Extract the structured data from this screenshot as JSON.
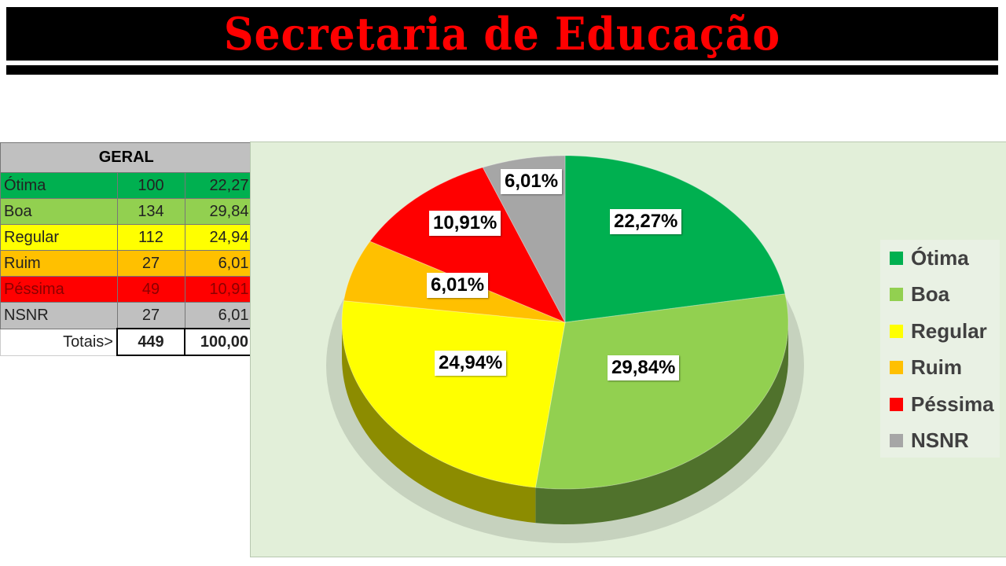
{
  "header": {
    "title": "Secretaria de Educação"
  },
  "table": {
    "title": "GERAL",
    "rows": [
      {
        "label": "Ótima",
        "count": "100",
        "percent": "22,27",
        "color": "#00b050",
        "text_color": "#222222"
      },
      {
        "label": "Boa",
        "count": "134",
        "percent": "29,84",
        "color": "#92d050",
        "text_color": "#222222"
      },
      {
        "label": "Regular",
        "count": "112",
        "percent": "24,94",
        "color": "#ffff00",
        "text_color": "#222222"
      },
      {
        "label": "Ruim",
        "count": "27",
        "percent": "6,01",
        "color": "#ffc000",
        "text_color": "#222222"
      },
      {
        "label": "Péssima",
        "count": "49",
        "percent": "10,91",
        "color": "#ff0000",
        "text_color": "#8b0000"
      },
      {
        "label": "NSNR",
        "count": "27",
        "percent": "6,01",
        "color": "#c0c0c0",
        "text_color": "#222222"
      }
    ],
    "totals": {
      "label": "Totais>",
      "count": "449",
      "percent": "100,00"
    }
  },
  "chart_data": {
    "type": "pie",
    "style": "3d",
    "start": "top, clockwise",
    "categories": [
      "Ótima",
      "Boa",
      "Regular",
      "Ruim",
      "Péssima",
      "NSNR"
    ],
    "values": [
      22.27,
      29.84,
      24.94,
      6.01,
      10.91,
      6.01
    ],
    "data_labels": [
      "22,27%",
      "29,84%",
      "24,94%",
      "6,01%",
      "10,91%",
      "6,01%"
    ],
    "colors": [
      "#00b050",
      "#92d050",
      "#ffff00",
      "#ffc000",
      "#ff0000",
      "#a6a6a6"
    ],
    "legend": {
      "position": "right",
      "entries": [
        "Ótima",
        "Boa",
        "Regular",
        "Ruim",
        "Péssima",
        "NSNR"
      ]
    }
  }
}
